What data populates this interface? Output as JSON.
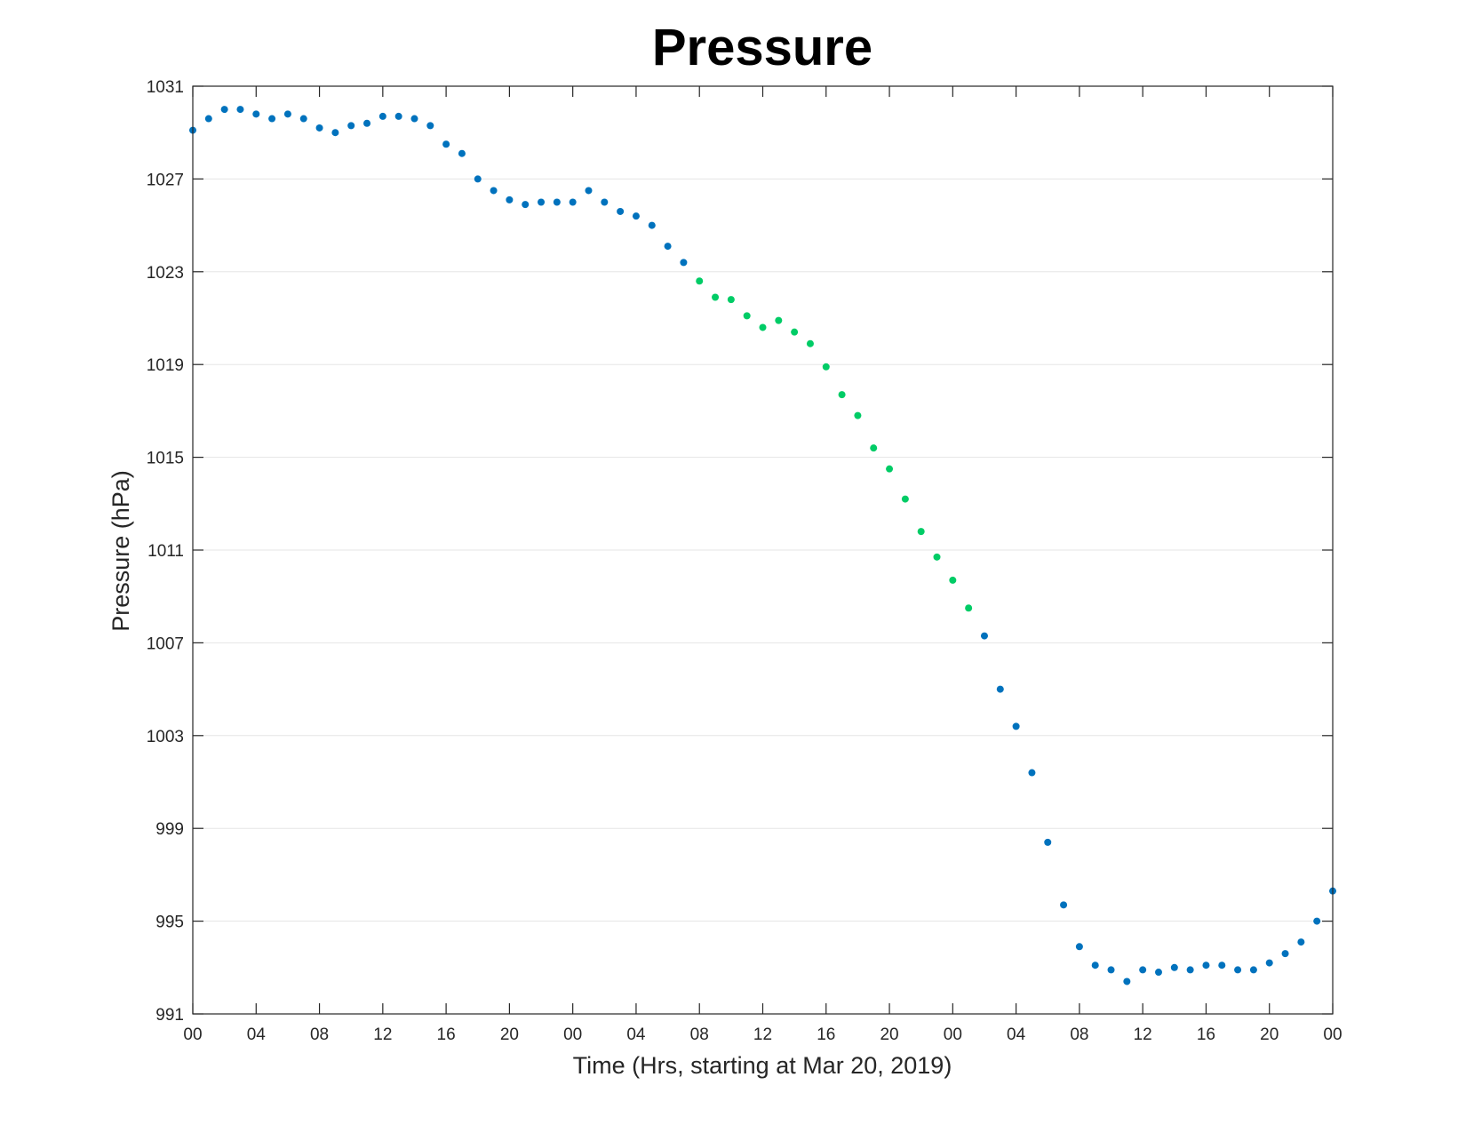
{
  "chart_data": {
    "type": "scatter",
    "title": "Pressure",
    "xlabel": "Time (Hrs, starting at Mar 20, 2019)",
    "ylabel": "Pressure (hPa)",
    "xlim": [
      0,
      72
    ],
    "ylim": [
      991,
      1031
    ],
    "x_ticks": [
      0,
      4,
      8,
      12,
      16,
      20,
      24,
      28,
      32,
      36,
      40,
      44,
      48,
      52,
      56,
      60,
      64,
      68,
      72
    ],
    "x_tick_labels": [
      "00",
      "04",
      "08",
      "12",
      "16",
      "20",
      "00",
      "04",
      "08",
      "12",
      "16",
      "20",
      "00",
      "04",
      "08",
      "12",
      "16",
      "20",
      "00"
    ],
    "y_ticks": [
      991,
      995,
      999,
      1003,
      1007,
      1011,
      1015,
      1019,
      1023,
      1027,
      1031
    ],
    "y_tick_labels": [
      "991",
      "995",
      "999",
      "1003",
      "1007",
      "1011",
      "1015",
      "1019",
      "1023",
      "1027",
      "1031"
    ],
    "grid": "horizontal",
    "colors": {
      "blue": "#0072bd",
      "green": "#00cc66",
      "grid": "#e5e5e5",
      "axis": "#262626"
    },
    "series": [
      {
        "color": "#0072bd",
        "x": [
          0,
          1,
          2,
          3,
          4,
          5,
          6,
          7,
          8,
          9,
          10,
          11,
          12,
          13,
          14,
          15,
          16,
          17,
          18,
          19,
          20,
          21,
          22,
          23,
          24,
          25,
          26,
          27,
          28,
          29,
          30,
          31,
          50,
          51,
          52,
          53,
          54,
          55,
          56,
          57,
          58,
          59,
          60,
          61,
          62,
          63,
          64,
          65,
          66,
          67,
          68,
          69,
          70,
          71,
          72
        ],
        "y": [
          1029.1,
          1029.6,
          1030.0,
          1030.0,
          1029.8,
          1029.6,
          1029.8,
          1029.6,
          1029.2,
          1029.0,
          1029.3,
          1029.4,
          1029.7,
          1029.7,
          1029.6,
          1029.3,
          1028.5,
          1028.1,
          1027.0,
          1026.5,
          1026.1,
          1025.9,
          1026.0,
          1026.0,
          1026.0,
          1026.5,
          1026.0,
          1025.6,
          1025.4,
          1025.0,
          1024.1,
          1023.4,
          1007.3,
          1005.0,
          1003.4,
          1001.4,
          998.4,
          995.7,
          993.9,
          993.1,
          992.9,
          992.4,
          992.9,
          992.8,
          993.0,
          992.9,
          993.1,
          993.1,
          992.9,
          992.9,
          993.2,
          993.6,
          994.1,
          995.0,
          996.3
        ]
      },
      {
        "color": "#00cc66",
        "x": [
          32,
          33,
          34,
          35,
          36,
          37,
          38,
          39,
          40,
          41,
          42,
          43,
          44,
          45,
          46,
          47,
          48,
          49
        ],
        "y": [
          1022.6,
          1021.9,
          1021.8,
          1021.1,
          1020.6,
          1020.9,
          1020.4,
          1019.9,
          1018.9,
          1017.7,
          1016.8,
          1015.4,
          1014.5,
          1013.2,
          1011.8,
          1010.7,
          1009.7,
          1008.5
        ]
      }
    ]
  }
}
